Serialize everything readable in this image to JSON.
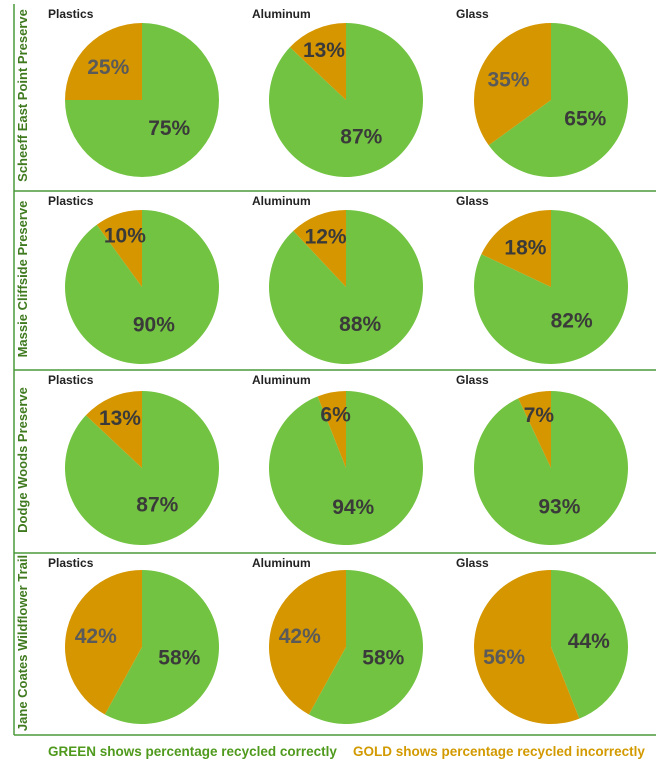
{
  "colors": {
    "correct": "#72c341",
    "incorrect": "#d59600",
    "divider": "#4a9a3a",
    "label_dark": "#3a3a3a",
    "label_on_gold": "#5a5a5a",
    "legend_green": "#4f9a1d",
    "legend_gold": "#d29a00"
  },
  "chart_data": {
    "type": "pie",
    "rows": [
      {
        "location": "Scheeff East Point Preserve",
        "pies": [
          {
            "material": "Plastics",
            "correct": 75,
            "incorrect": 25
          },
          {
            "material": "Aluminum",
            "correct": 87,
            "incorrect": 13
          },
          {
            "material": "Glass",
            "correct": 65,
            "incorrect": 35
          }
        ]
      },
      {
        "location": "Massie Cliffside Preserve",
        "pies": [
          {
            "material": "Plastics",
            "correct": 90,
            "incorrect": 10
          },
          {
            "material": "Aluminum",
            "correct": 88,
            "incorrect": 12
          },
          {
            "material": "Glass",
            "correct": 82,
            "incorrect": 18
          }
        ]
      },
      {
        "location": "Dodge Woods Preserve",
        "pies": [
          {
            "material": "Plastics",
            "correct": 87,
            "incorrect": 13
          },
          {
            "material": "Aluminum",
            "correct": 94,
            "incorrect": 6
          },
          {
            "material": "Glass",
            "correct": 93,
            "incorrect": 7
          }
        ]
      },
      {
        "location": "Jane Coates Wildflower Trail",
        "pies": [
          {
            "material": "Plastics",
            "correct": 58,
            "incorrect": 42
          },
          {
            "material": "Aluminum",
            "correct": 58,
            "incorrect": 42
          },
          {
            "material": "Glass",
            "correct": 44,
            "incorrect": 56
          }
        ]
      }
    ],
    "legend": {
      "correct": "GREEN shows percentage recycled correctly",
      "incorrect": "GOLD shows percentage recycled incorrectly"
    }
  }
}
